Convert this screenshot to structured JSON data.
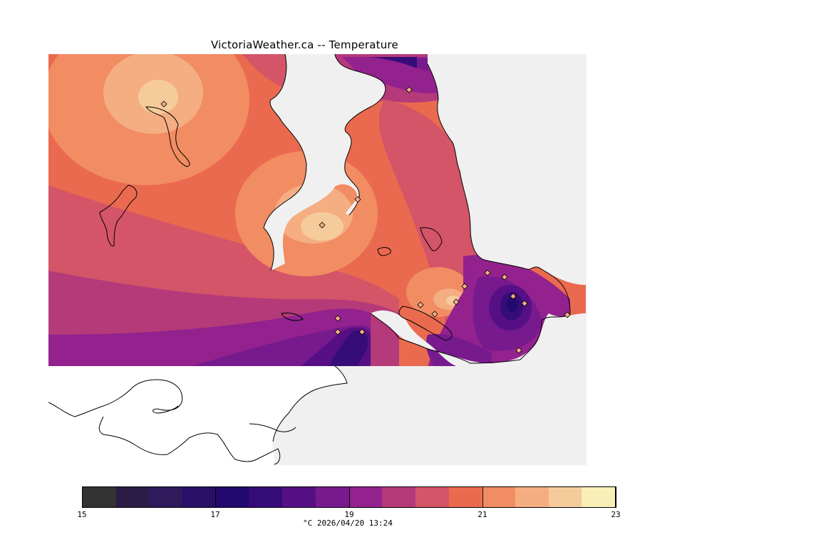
{
  "title": "VictoriaWeather.ca -- Temperature",
  "legend": {
    "ticks": [
      "15",
      "17",
      "19",
      "21",
      "23"
    ],
    "tick_values": [
      15,
      17,
      19,
      21,
      23
    ],
    "min": 15,
    "max": 23,
    "step": 0.5,
    "colors": [
      "#333333",
      "#2a1c44",
      "#2f1a5c",
      "#2a1068",
      "#22096e",
      "#350c78",
      "#560f84",
      "#771a8e",
      "#93228e",
      "#b43a7a",
      "#d45468",
      "#ea6a50",
      "#f28c62",
      "#f5ad82",
      "#f6cb9c",
      "#f7eeb8"
    ],
    "caption": "°C  2026/04/20 13:24"
  },
  "map": {
    "water_color": "#f0f0f0",
    "land_outline_color": "#000000",
    "station_marker": "diamond"
  }
}
